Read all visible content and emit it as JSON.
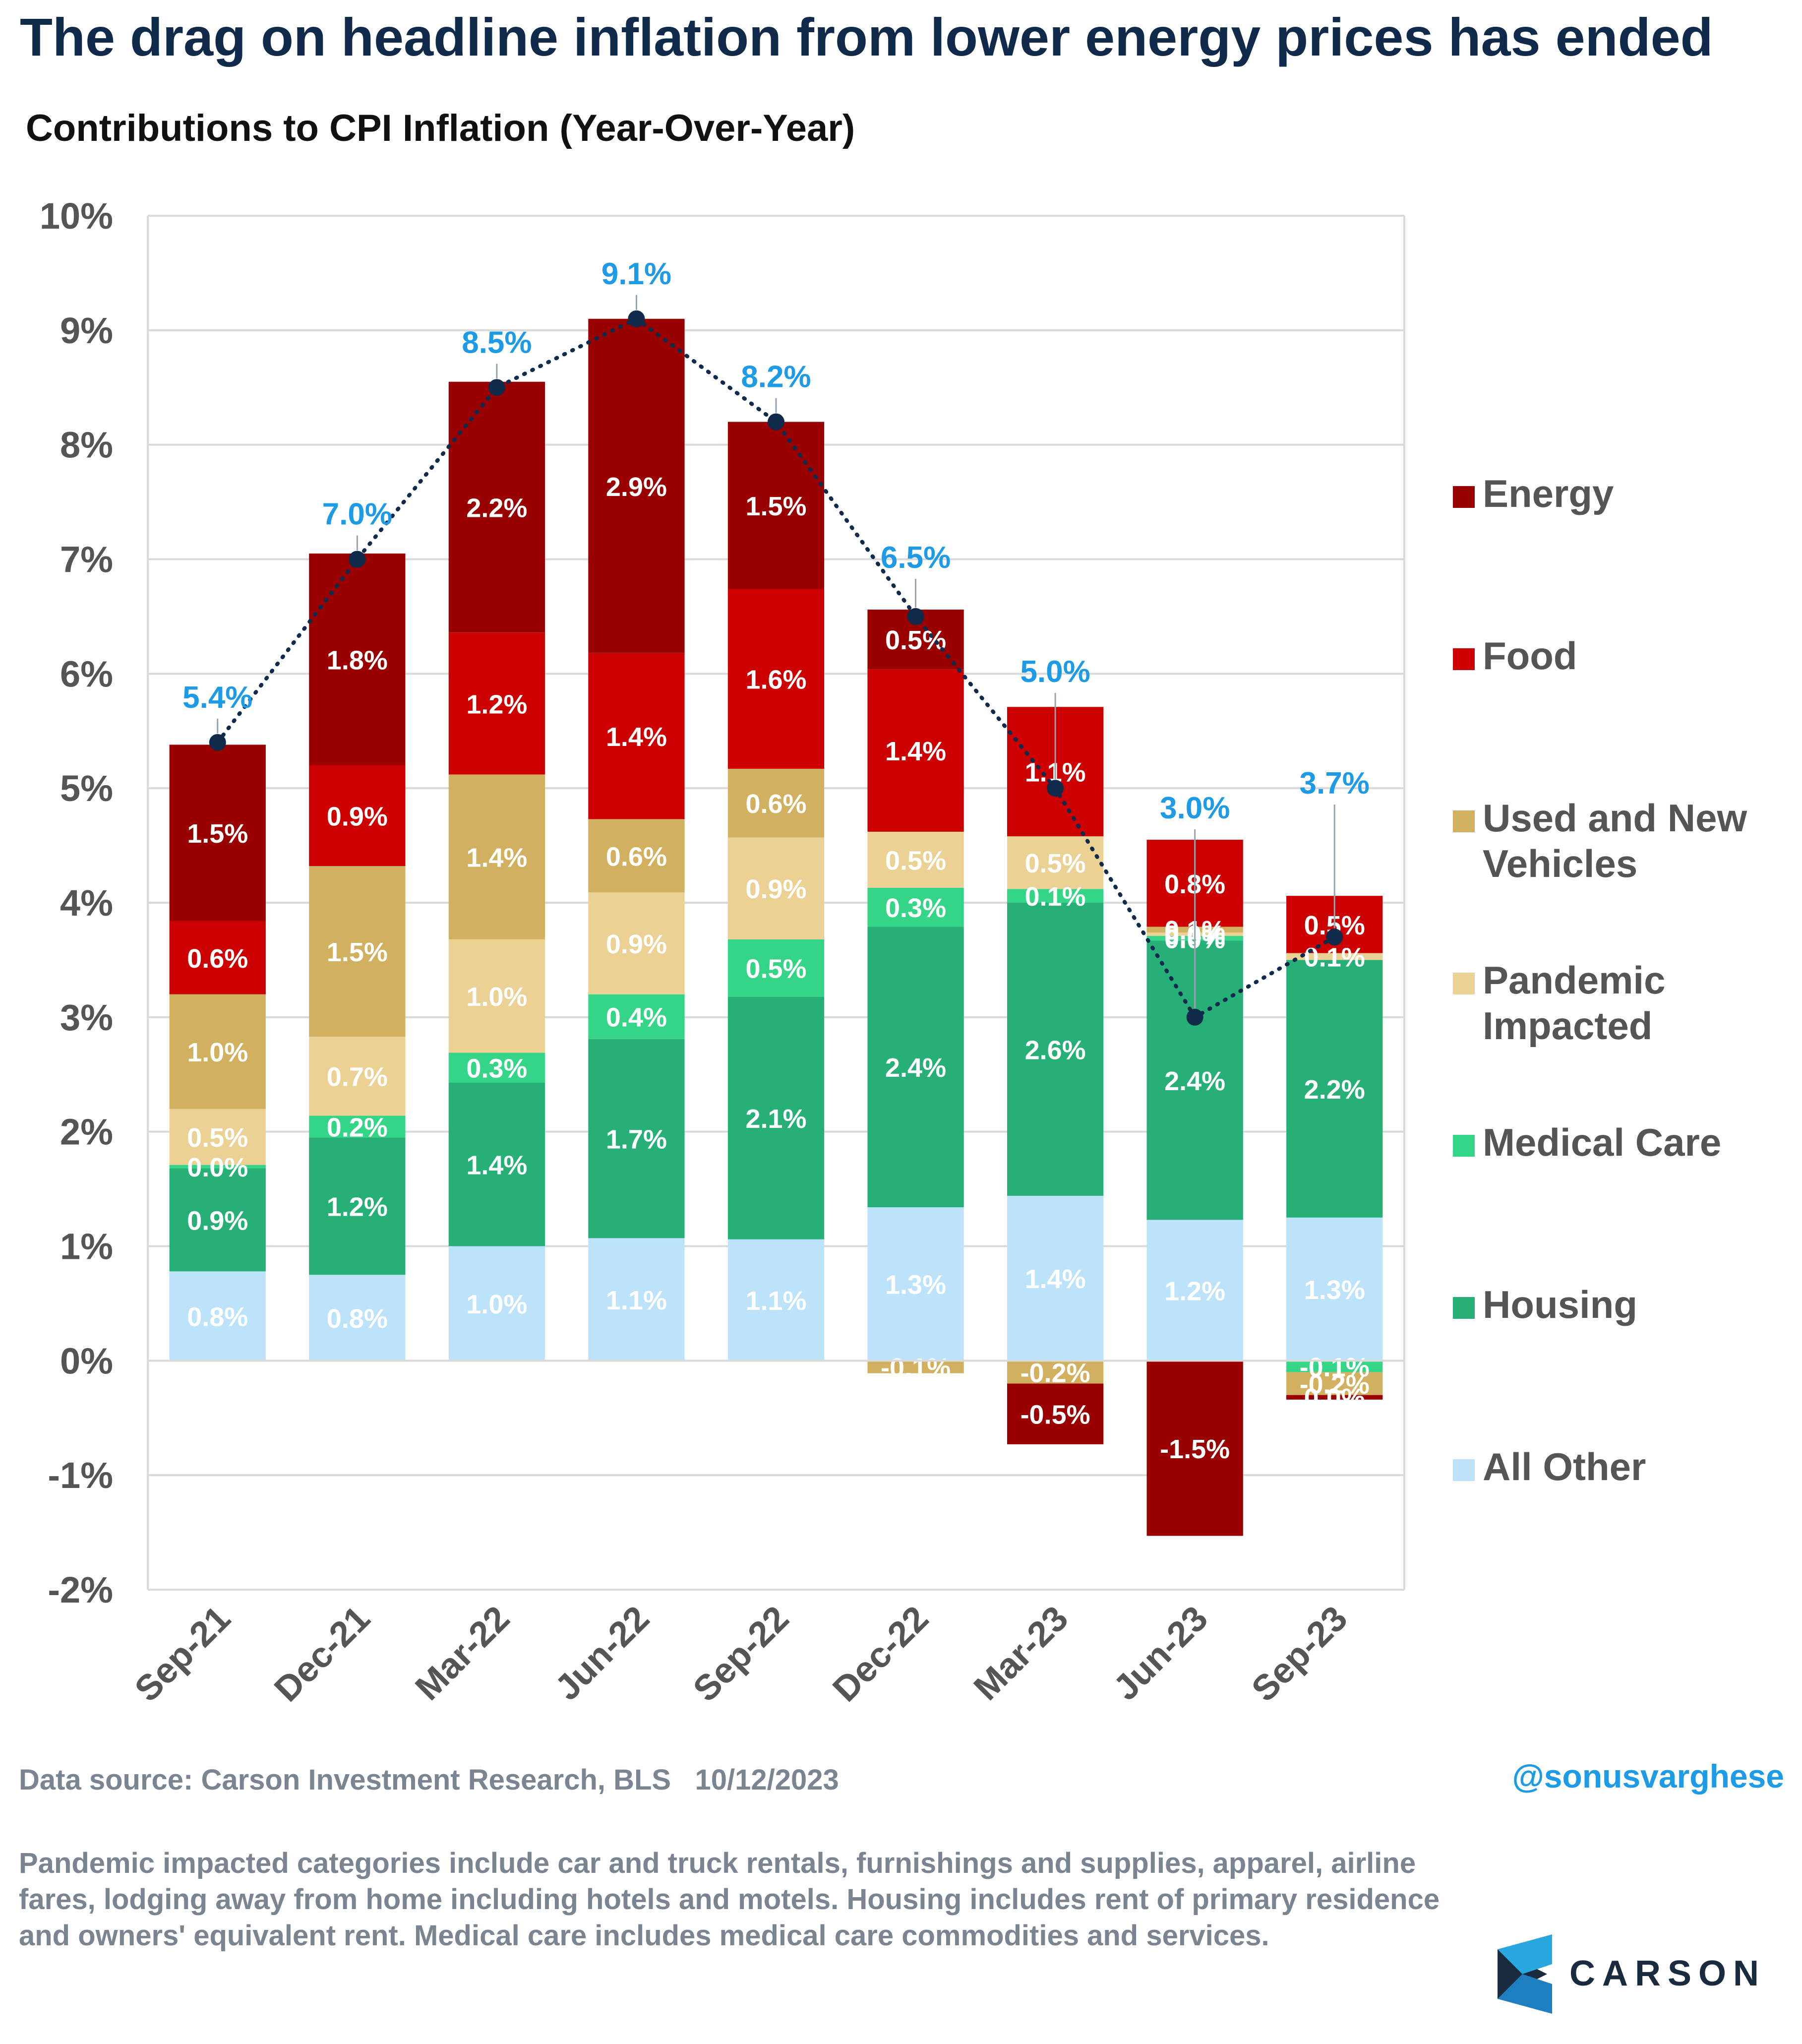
{
  "header": {
    "title": "The drag on headline inflation from lower energy prices has ended",
    "subtitle": "Contributions to CPI Inflation (Year-Over-Year)"
  },
  "footer": {
    "source": "Data source: Carson Investment Research, BLS   10/12/2023",
    "handle": "@sonusvarghese",
    "note": "Pandemic impacted categories include car and truck rentals, furnishings and supplies, apparel, airline fares, lodging away from home including hotels and motels. Housing includes rent of primary residence and owners' equivalent rent. Medical care includes medical care commodities and services.",
    "logo_text": "CARSON"
  },
  "chart_data": {
    "type": "bar",
    "stacked": true,
    "categories": [
      "Sep-21",
      "Dec-21",
      "Mar-22",
      "Jun-22",
      "Sep-22",
      "Dec-22",
      "Mar-23",
      "Jun-23",
      "Sep-23"
    ],
    "ylim": [
      -2,
      10
    ],
    "y_ticks": [
      "-2%",
      "-1%",
      "0%",
      "1%",
      "2%",
      "3%",
      "4%",
      "5%",
      "6%",
      "7%",
      "8%",
      "9%",
      "10%"
    ],
    "grid": true,
    "legend_position": "right",
    "series": [
      {
        "name": "All Other",
        "color": "#bde3fb",
        "label_color": "#ffffff",
        "values": [
          0.78,
          0.75,
          1.0,
          1.07,
          1.06,
          1.34,
          1.44,
          1.23,
          1.25
        ],
        "labels": [
          "0.8%",
          "0.8%",
          "1.0%",
          "1.1%",
          "1.1%",
          "1.3%",
          "1.4%",
          "1.2%",
          "1.3%"
        ]
      },
      {
        "name": "Housing",
        "color": "#26b078",
        "label_color": "#ffffff",
        "values": [
          0.9,
          1.2,
          1.43,
          1.74,
          2.12,
          2.45,
          2.56,
          2.44,
          2.25
        ],
        "labels": [
          "0.9%",
          "1.2%",
          "1.4%",
          "1.7%",
          "2.1%",
          "2.4%",
          "2.6%",
          "2.4%",
          "2.2%"
        ]
      },
      {
        "name": "Medical Care",
        "color": "#35d588",
        "label_color": "#ffffff",
        "values": [
          0.03,
          0.19,
          0.26,
          0.39,
          0.5,
          0.34,
          0.12,
          0.04,
          -0.1
        ],
        "labels": [
          "0.0%",
          "0.2%",
          "0.3%",
          "0.4%",
          "0.5%",
          "0.3%",
          "0.1%",
          "0.0%",
          "-0.1%"
        ]
      },
      {
        "name": "Pandemic Impacted",
        "color": "#ebd194",
        "label_color": "#ffffff",
        "values": [
          0.49,
          0.69,
          0.99,
          0.89,
          0.89,
          0.49,
          0.46,
          0.03,
          0.06
        ],
        "labels": [
          "0.5%",
          "0.7%",
          "1.0%",
          "0.9%",
          "0.9%",
          "0.5%",
          "0.5%",
          "0.0%",
          "0.1%"
        ]
      },
      {
        "name": "Used and New Vehicles",
        "color": "#d1b15f",
        "label_color": "#ffffff",
        "values": [
          1.0,
          1.49,
          1.44,
          0.64,
          0.6,
          -0.11,
          -0.2,
          0.05,
          -0.2
        ],
        "labels": [
          "1.0%",
          "1.5%",
          "1.4%",
          "0.6%",
          "0.6%",
          "-0.1%",
          "-0.2%",
          "0.1%",
          "-0.2%"
        ]
      },
      {
        "name": "Food",
        "color": "#cc0000",
        "label_color": "#ffffff",
        "values": [
          0.64,
          0.88,
          1.24,
          1.45,
          1.57,
          1.42,
          1.13,
          0.76,
          0.5
        ],
        "labels": [
          "0.6%",
          "0.9%",
          "1.2%",
          "1.4%",
          "1.6%",
          "1.4%",
          "1.1%",
          "0.8%",
          "0.5%"
        ]
      },
      {
        "name": "Energy",
        "color": "#990000",
        "label_color": "#ffffff",
        "values": [
          1.54,
          1.85,
          2.19,
          2.92,
          1.46,
          0.52,
          -0.53,
          -1.53,
          -0.04
        ],
        "labels": [
          "1.5%",
          "1.8%",
          "2.2%",
          "2.9%",
          "1.5%",
          "0.5%",
          "-0.5%",
          "-1.5%",
          "0.0%"
        ]
      }
    ],
    "line": {
      "name": "Headline CPI",
      "color": "#0f2a4a",
      "label_color": "#1e9be6",
      "values": [
        5.4,
        7.0,
        8.5,
        9.1,
        8.2,
        6.5,
        5.0,
        3.0,
        3.7
      ],
      "labels": [
        "5.4%",
        "7.0%",
        "8.5%",
        "9.1%",
        "8.2%",
        "6.5%",
        "5.0%",
        "3.0%",
        "3.7%"
      ]
    },
    "legend": [
      {
        "name": "Energy",
        "color": "#990000",
        "lines": [
          "Energy"
        ]
      },
      {
        "name": "Food",
        "color": "#cc0000",
        "lines": [
          "Food"
        ]
      },
      {
        "name": "Used and New Vehicles",
        "color": "#d1b15f",
        "lines": [
          "Used and New",
          "Vehicles"
        ]
      },
      {
        "name": "Pandemic Impacted",
        "color": "#ebd194",
        "lines": [
          "Pandemic",
          "Impacted"
        ]
      },
      {
        "name": "Medical Care",
        "color": "#35d588",
        "lines": [
          "Medical Care"
        ]
      },
      {
        "name": "Housing",
        "color": "#26b078",
        "lines": [
          "Housing"
        ]
      },
      {
        "name": "All Other",
        "color": "#bde3fb",
        "lines": [
          "All Other"
        ]
      }
    ]
  }
}
